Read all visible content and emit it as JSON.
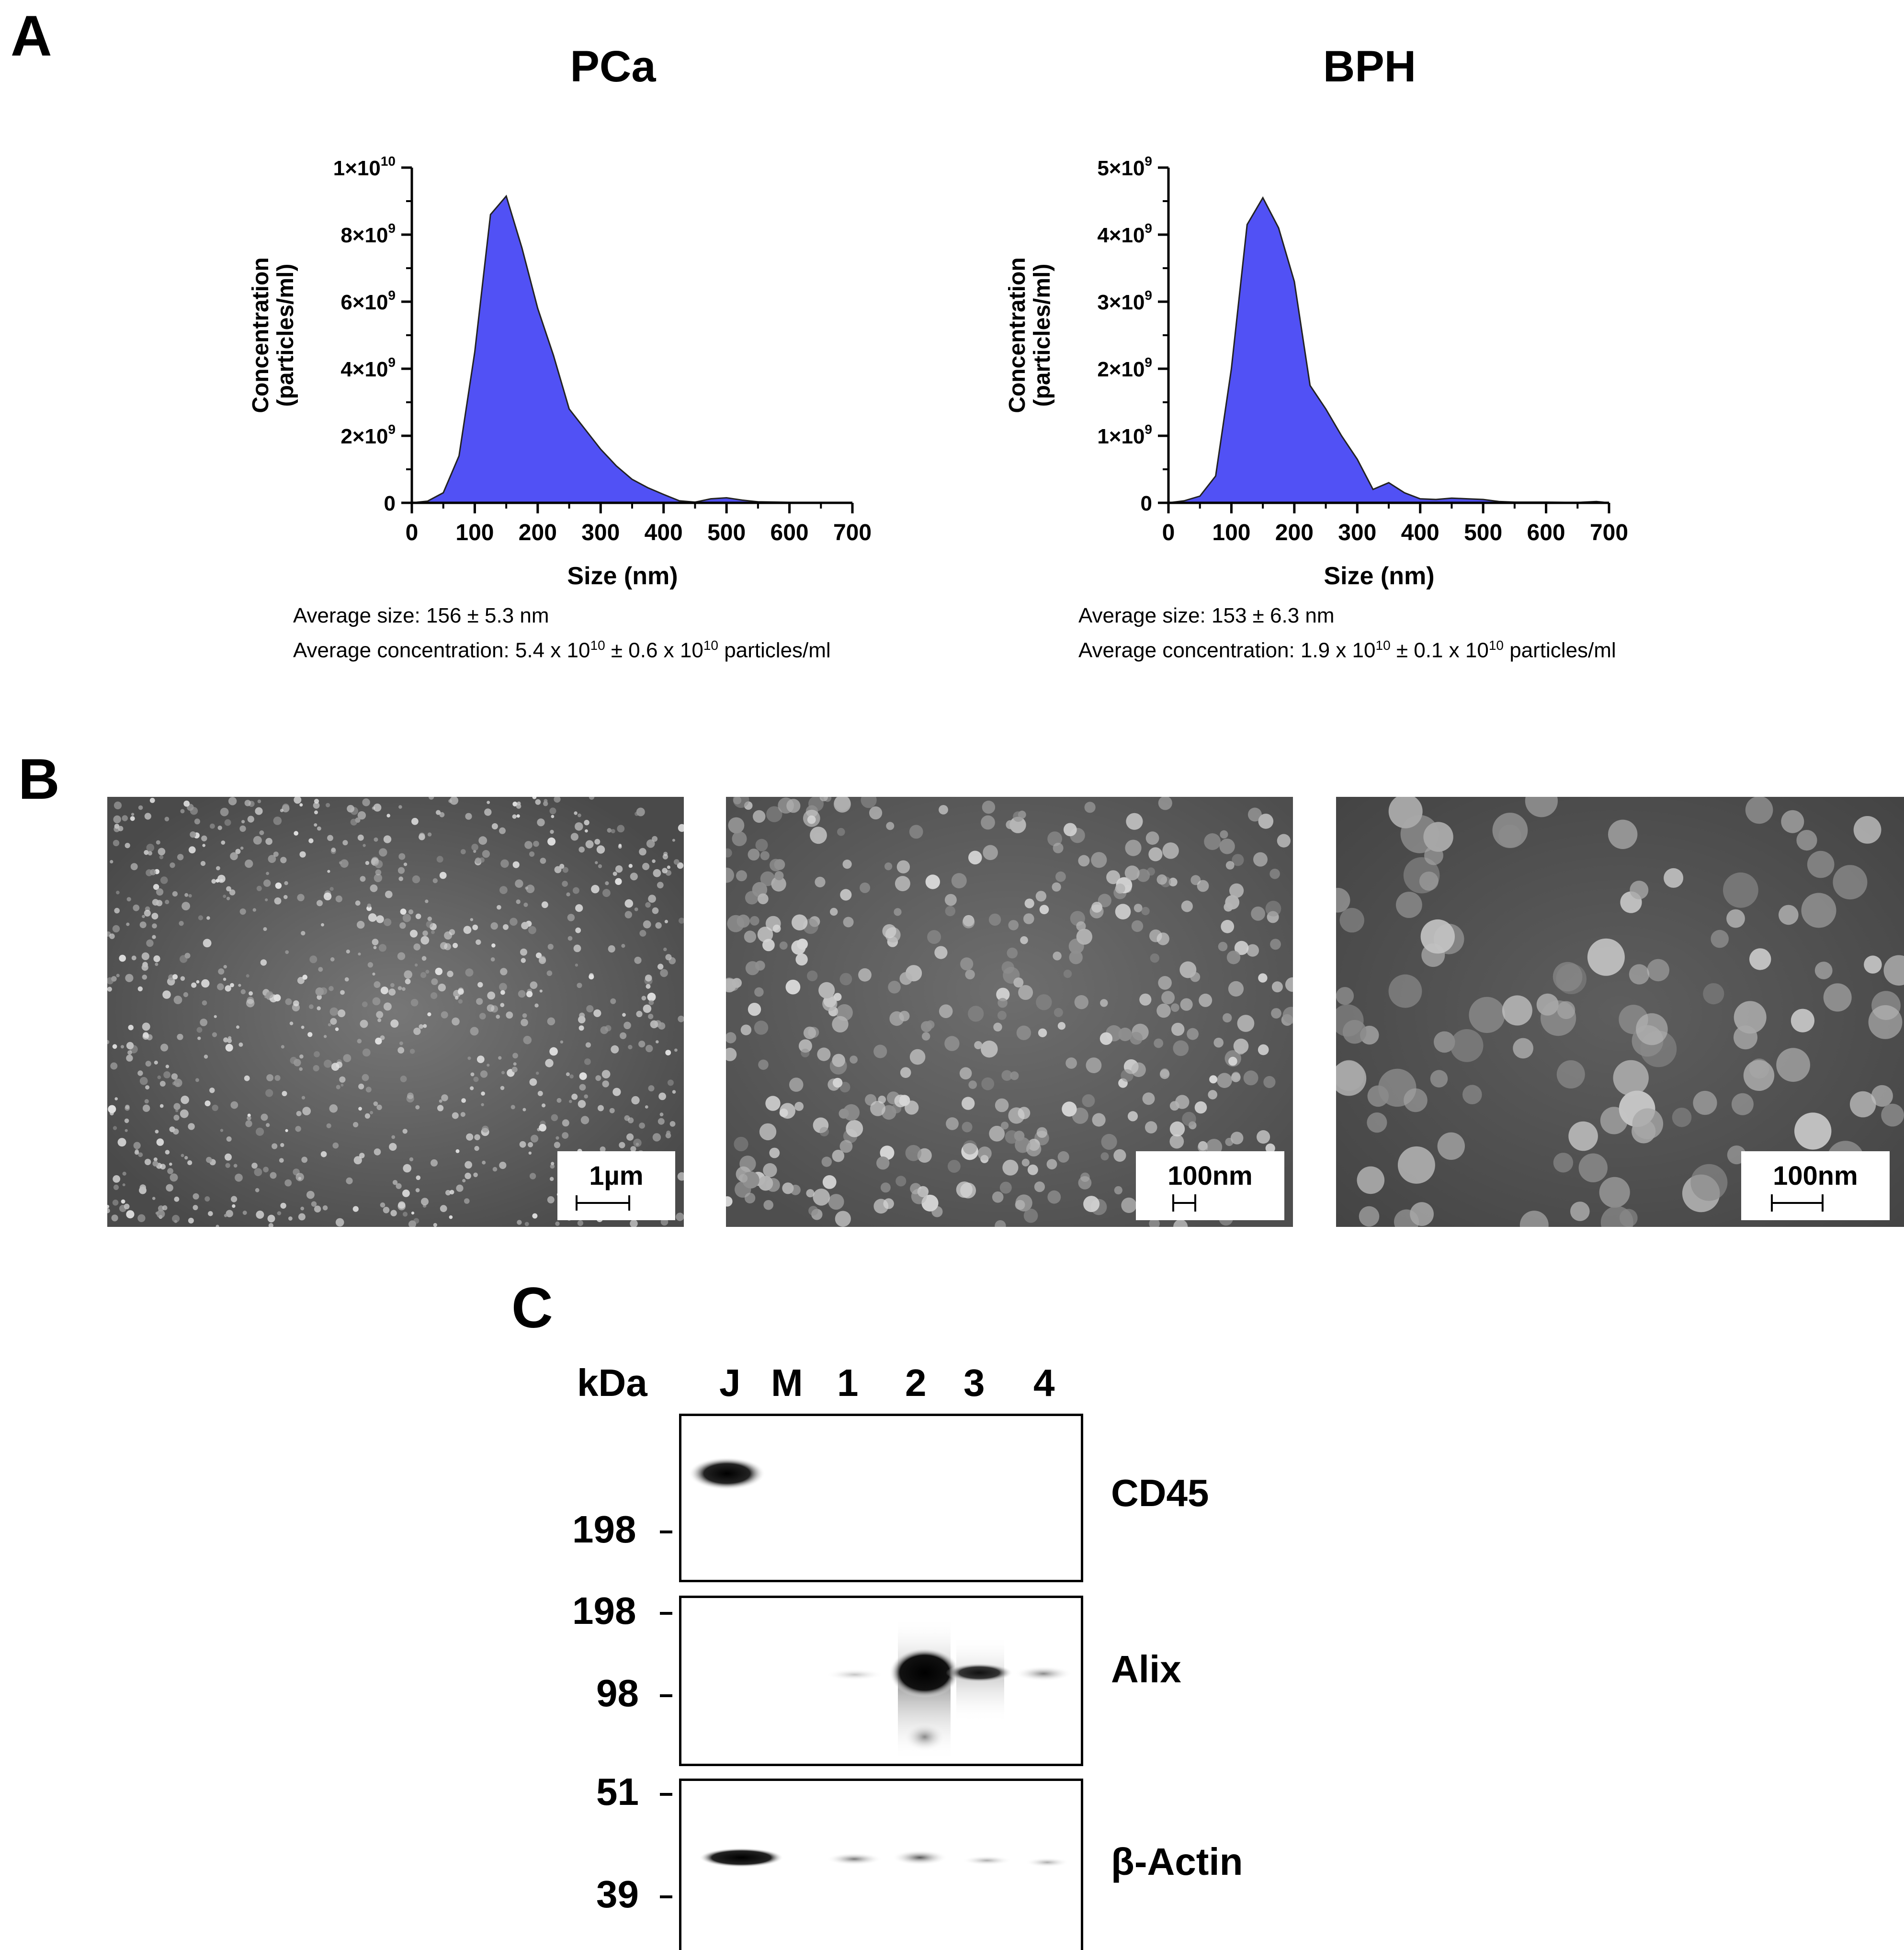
{
  "panels": {
    "a": "A",
    "b": "B",
    "c": "C"
  },
  "chart_data": [
    {
      "type": "area",
      "title": "PCa",
      "xlabel": "Size (nm)",
      "ylabel_line1": "Concentration",
      "ylabel_line2": "(particles/ml)",
      "xlim": [
        0,
        700
      ],
      "ylim": [
        0,
        10000000000
      ],
      "xticks": [
        "0",
        "100",
        "200",
        "300",
        "400",
        "500",
        "600",
        "700"
      ],
      "yticks": [
        {
          "value": 0,
          "base": "0",
          "exp": ""
        },
        {
          "value": 2000000000,
          "base": "2×10",
          "exp": "9"
        },
        {
          "value": 4000000000,
          "base": "4×10",
          "exp": "9"
        },
        {
          "value": 6000000000,
          "base": "6×10",
          "exp": "9"
        },
        {
          "value": 8000000000,
          "base": "8×10",
          "exp": "9"
        },
        {
          "value": 10000000000,
          "base": "1×10",
          "exp": "10"
        }
      ],
      "x": [
        0,
        25,
        50,
        75,
        100,
        125,
        150,
        175,
        200,
        225,
        250,
        275,
        300,
        325,
        350,
        375,
        400,
        425,
        450,
        475,
        500,
        525,
        550,
        600,
        650,
        700
      ],
      "y": [
        0,
        50000000,
        300000000,
        1400000000,
        4500000000,
        8600000000,
        9150000000,
        7600000000,
        5800000000,
        4400000000,
        2800000000,
        2200000000,
        1600000000,
        1100000000,
        700000000,
        450000000,
        250000000,
        60000000,
        20000000,
        120000000,
        150000000,
        80000000,
        30000000,
        15000000,
        10000000,
        0
      ],
      "stats_line1": "Average size: 156 ± 5.3 nm",
      "stats_conc_prefix": "Average concentration: 5.4 x 10",
      "stats_conc_exp1": "10",
      "stats_conc_mid": " ± 0.6 x 10",
      "stats_conc_exp2": "10",
      "stats_conc_suffix": " particles/ml",
      "fill_color": "#5151f5"
    },
    {
      "type": "area",
      "title": "BPH",
      "xlabel": "Size (nm)",
      "ylabel_line1": "Concentration",
      "ylabel_line2": "(particles/ml)",
      "xlim": [
        0,
        700
      ],
      "ylim": [
        0,
        5000000000
      ],
      "xticks": [
        "0",
        "100",
        "200",
        "300",
        "400",
        "500",
        "600",
        "700"
      ],
      "yticks": [
        {
          "value": 0,
          "base": "0",
          "exp": ""
        },
        {
          "value": 1000000000,
          "base": "1×10",
          "exp": "9"
        },
        {
          "value": 2000000000,
          "base": "2×10",
          "exp": "9"
        },
        {
          "value": 3000000000,
          "base": "3×10",
          "exp": "9"
        },
        {
          "value": 4000000000,
          "base": "4×10",
          "exp": "9"
        },
        {
          "value": 5000000000,
          "base": "5×10",
          "exp": "9"
        }
      ],
      "x": [
        0,
        25,
        50,
        75,
        100,
        125,
        150,
        175,
        200,
        225,
        250,
        275,
        300,
        325,
        350,
        375,
        400,
        425,
        450,
        475,
        500,
        525,
        550,
        600,
        650,
        680,
        700
      ],
      "y": [
        0,
        30000000,
        100000000,
        400000000,
        2000000000,
        4150000000,
        4550000000,
        4100000000,
        3300000000,
        1750000000,
        1400000000,
        1000000000,
        650000000,
        200000000,
        300000000,
        150000000,
        60000000,
        50000000,
        70000000,
        60000000,
        50000000,
        20000000,
        10000000,
        10000000,
        5000000,
        20000000,
        0
      ],
      "stats_line1": "Average size: 153 ± 6.3 nm",
      "stats_conc_prefix": "Average concentration: 1.9 x 10",
      "stats_conc_exp1": "10",
      "stats_conc_mid": " ± 0.1 x 10",
      "stats_conc_exp2": "10",
      "stats_conc_suffix": " particles/ml",
      "fill_color": "#5151f5"
    }
  ],
  "sem_images": [
    {
      "scale_label": "1µm"
    },
    {
      "scale_label": "100nm"
    },
    {
      "scale_label": "100nm"
    }
  ],
  "western": {
    "kda_label": "kDa",
    "lanes": [
      "J",
      "M",
      "1",
      "2",
      "3",
      "4"
    ],
    "blots": [
      {
        "name": "CD45",
        "markers": [
          "198"
        ]
      },
      {
        "name": "Alix",
        "markers": [
          "198",
          "98"
        ]
      },
      {
        "name": "β-Actin",
        "markers": [
          "51",
          "39"
        ]
      }
    ]
  }
}
